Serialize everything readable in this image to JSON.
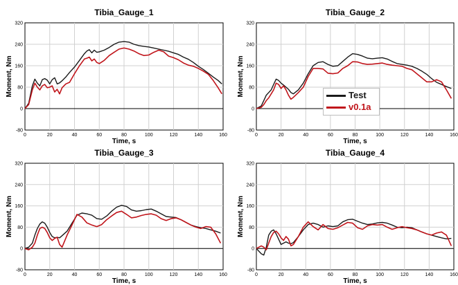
{
  "colors": {
    "test": "#1a1a1a",
    "sim": "#c0141a",
    "zero": "#000000",
    "grid": "#d0d0d0"
  },
  "legend": [
    {
      "label": "Test",
      "color": "#1a1a1a"
    },
    {
      "label": "v0.1a",
      "color": "#c0141a"
    }
  ],
  "chart_data": [
    {
      "type": "line",
      "title": "Tibia_Gauge_1",
      "xlabel": "Time, s",
      "ylabel": "Moment, Nm",
      "xlim": [
        0,
        160
      ],
      "ylim": [
        -80,
        320
      ],
      "xticks": [
        0,
        20,
        40,
        60,
        80,
        100,
        120,
        140,
        160
      ],
      "yticks": [
        -80,
        0,
        80,
        160,
        240,
        320
      ],
      "series": [
        {
          "name": "Test",
          "x": [
            0,
            3,
            6,
            8,
            10,
            12,
            14,
            16,
            18,
            20,
            22,
            24,
            26,
            28,
            30,
            33,
            36,
            40,
            44,
            48,
            50,
            52,
            54,
            56,
            58,
            60,
            64,
            68,
            72,
            76,
            80,
            84,
            88,
            92,
            96,
            100,
            104,
            108,
            112,
            116,
            120,
            124,
            128,
            132,
            136,
            140,
            144,
            148,
            152,
            156,
            159
          ],
          "y": [
            0,
            20,
            85,
            110,
            95,
            85,
            108,
            112,
            106,
            92,
            108,
            115,
            92,
            96,
            104,
            118,
            135,
            155,
            180,
            205,
            215,
            220,
            208,
            218,
            210,
            212,
            218,
            228,
            240,
            248,
            250,
            248,
            240,
            235,
            232,
            230,
            226,
            222,
            218,
            214,
            208,
            202,
            192,
            184,
            172,
            158,
            146,
            132,
            118,
            105,
            92
          ]
        },
        {
          "name": "v0.1a",
          "x": [
            0,
            3,
            6,
            8,
            10,
            12,
            14,
            16,
            18,
            20,
            22,
            24,
            26,
            28,
            30,
            33,
            36,
            40,
            44,
            48,
            50,
            52,
            54,
            56,
            58,
            60,
            64,
            68,
            72,
            76,
            80,
            84,
            88,
            92,
            96,
            100,
            104,
            108,
            112,
            116,
            120,
            124,
            128,
            132,
            136,
            140,
            144,
            148,
            152,
            156,
            159
          ],
          "y": [
            0,
            15,
            70,
            95,
            80,
            70,
            85,
            90,
            78,
            80,
            85,
            62,
            72,
            55,
            78,
            92,
            98,
            130,
            160,
            185,
            188,
            192,
            178,
            185,
            172,
            168,
            180,
            198,
            210,
            222,
            226,
            222,
            215,
            205,
            198,
            200,
            210,
            218,
            212,
            196,
            190,
            182,
            170,
            162,
            158,
            150,
            140,
            128,
            105,
            78,
            55
          ]
        }
      ]
    },
    {
      "type": "line",
      "title": "Tibia_Gauge_2",
      "xlabel": "Time, s",
      "ylabel": "Moment, Nm",
      "xlim": [
        0,
        160
      ],
      "ylim": [
        -80,
        320
      ],
      "xticks": [
        0,
        20,
        40,
        60,
        80,
        100,
        120,
        140,
        160
      ],
      "yticks": [
        -80,
        0,
        80,
        160,
        240,
        320
      ],
      "series": [
        {
          "name": "Test",
          "x": [
            0,
            4,
            6,
            8,
            10,
            12,
            14,
            16,
            18,
            20,
            22,
            24,
            26,
            28,
            30,
            34,
            38,
            42,
            46,
            50,
            54,
            58,
            62,
            66,
            70,
            74,
            78,
            82,
            86,
            90,
            94,
            98,
            102,
            106,
            110,
            114,
            118,
            122,
            126,
            130,
            134,
            138,
            142,
            146,
            150,
            154,
            158
          ],
          "y": [
            0,
            10,
            30,
            50,
            60,
            70,
            90,
            110,
            105,
            95,
            88,
            80,
            72,
            60,
            55,
            70,
            95,
            130,
            160,
            172,
            175,
            165,
            158,
            160,
            176,
            192,
            205,
            202,
            196,
            188,
            186,
            188,
            190,
            185,
            176,
            168,
            165,
            162,
            158,
            150,
            140,
            128,
            112,
            98,
            90,
            82,
            75
          ]
        },
        {
          "name": "v0.1a",
          "x": [
            0,
            4,
            6,
            8,
            10,
            12,
            14,
            16,
            18,
            20,
            22,
            24,
            26,
            28,
            30,
            34,
            38,
            42,
            46,
            50,
            54,
            58,
            62,
            66,
            70,
            74,
            78,
            82,
            86,
            90,
            94,
            98,
            102,
            106,
            110,
            114,
            118,
            122,
            126,
            130,
            134,
            138,
            142,
            146,
            150,
            154,
            158
          ],
          "y": [
            0,
            5,
            15,
            30,
            40,
            55,
            70,
            95,
            90,
            75,
            85,
            70,
            50,
            35,
            42,
            60,
            80,
            120,
            150,
            150,
            148,
            132,
            130,
            133,
            150,
            160,
            175,
            174,
            168,
            165,
            166,
            168,
            170,
            165,
            162,
            160,
            158,
            150,
            145,
            130,
            115,
            100,
            100,
            108,
            100,
            70,
            38
          ]
        }
      ]
    },
    {
      "type": "line",
      "title": "Tibia_Gauge_3",
      "xlabel": "Time, s",
      "ylabel": "Moment, Nm",
      "xlim": [
        0,
        160
      ],
      "ylim": [
        -80,
        320
      ],
      "xticks": [
        0,
        20,
        40,
        60,
        80,
        100,
        120,
        140,
        160
      ],
      "yticks": [
        -80,
        0,
        80,
        160,
        240,
        320
      ],
      "series": [
        {
          "name": "Test",
          "x": [
            0,
            3,
            6,
            8,
            10,
            12,
            14,
            16,
            18,
            20,
            22,
            24,
            26,
            28,
            30,
            34,
            38,
            42,
            46,
            50,
            54,
            58,
            62,
            66,
            70,
            74,
            78,
            82,
            86,
            90,
            94,
            98,
            102,
            106,
            110,
            114,
            118,
            122,
            126,
            130,
            134,
            138,
            142,
            146,
            150,
            154,
            158
          ],
          "y": [
            0,
            5,
            20,
            50,
            75,
            92,
            100,
            95,
            80,
            60,
            45,
            40,
            42,
            40,
            48,
            65,
            95,
            125,
            133,
            130,
            125,
            112,
            110,
            122,
            140,
            155,
            162,
            158,
            145,
            140,
            142,
            146,
            148,
            140,
            130,
            120,
            118,
            116,
            108,
            98,
            88,
            82,
            78,
            75,
            70,
            65,
            58
          ]
        },
        {
          "name": "v0.1a",
          "x": [
            0,
            3,
            6,
            8,
            10,
            12,
            14,
            16,
            18,
            20,
            22,
            24,
            26,
            28,
            30,
            34,
            38,
            42,
            46,
            50,
            54,
            58,
            62,
            66,
            70,
            74,
            78,
            82,
            86,
            90,
            94,
            98,
            102,
            106,
            110,
            114,
            118,
            122,
            126,
            130,
            134,
            138,
            142,
            146,
            150,
            154,
            158
          ],
          "y": [
            0,
            -5,
            5,
            20,
            50,
            75,
            80,
            75,
            60,
            40,
            30,
            38,
            42,
            15,
            5,
            50,
            88,
            128,
            118,
            96,
            88,
            82,
            90,
            108,
            122,
            135,
            140,
            128,
            115,
            118,
            124,
            128,
            130,
            125,
            112,
            105,
            112,
            115,
            108,
            98,
            88,
            80,
            75,
            82,
            80,
            55,
            20
          ]
        }
      ]
    },
    {
      "type": "line",
      "title": "Tibia_Gauge_4",
      "xlabel": "Time, s",
      "ylabel": "Moment, Nm",
      "xlim": [
        0,
        160
      ],
      "ylim": [
        -80,
        320
      ],
      "xticks": [
        0,
        20,
        40,
        60,
        80,
        100,
        120,
        140,
        160
      ],
      "yticks": [
        -80,
        0,
        80,
        160,
        240,
        320
      ],
      "series": [
        {
          "name": "Test",
          "x": [
            0,
            2,
            4,
            6,
            8,
            10,
            12,
            14,
            16,
            18,
            20,
            22,
            24,
            26,
            28,
            30,
            34,
            38,
            42,
            46,
            50,
            54,
            58,
            62,
            66,
            70,
            74,
            78,
            82,
            86,
            90,
            94,
            98,
            102,
            106,
            110,
            114,
            118,
            122,
            126,
            130,
            134,
            138,
            142,
            146,
            150,
            154,
            158
          ],
          "y": [
            0,
            -10,
            -20,
            -25,
            5,
            50,
            65,
            70,
            55,
            35,
            15,
            20,
            25,
            20,
            18,
            22,
            45,
            70,
            90,
            95,
            90,
            80,
            85,
            82,
            85,
            100,
            108,
            110,
            102,
            95,
            90,
            92,
            96,
            98,
            95,
            88,
            80,
            78,
            80,
            78,
            70,
            62,
            55,
            50,
            45,
            40,
            36,
            38
          ]
        },
        {
          "name": "v0.1a",
          "x": [
            0,
            2,
            4,
            6,
            8,
            10,
            12,
            14,
            16,
            18,
            20,
            22,
            24,
            26,
            28,
            30,
            34,
            38,
            42,
            46,
            50,
            54,
            58,
            62,
            66,
            70,
            74,
            78,
            82,
            86,
            90,
            94,
            98,
            102,
            106,
            110,
            114,
            118,
            122,
            126,
            130,
            134,
            138,
            142,
            146,
            150,
            154,
            158
          ],
          "y": [
            0,
            5,
            10,
            5,
            -5,
            20,
            45,
            60,
            65,
            55,
            40,
            30,
            45,
            35,
            10,
            15,
            45,
            80,
            100,
            82,
            70,
            90,
            75,
            72,
            78,
            88,
            98,
            95,
            78,
            72,
            85,
            90,
            88,
            90,
            80,
            72,
            78,
            82,
            78,
            75,
            70,
            62,
            55,
            50,
            58,
            62,
            50,
            10
          ]
        }
      ]
    }
  ]
}
